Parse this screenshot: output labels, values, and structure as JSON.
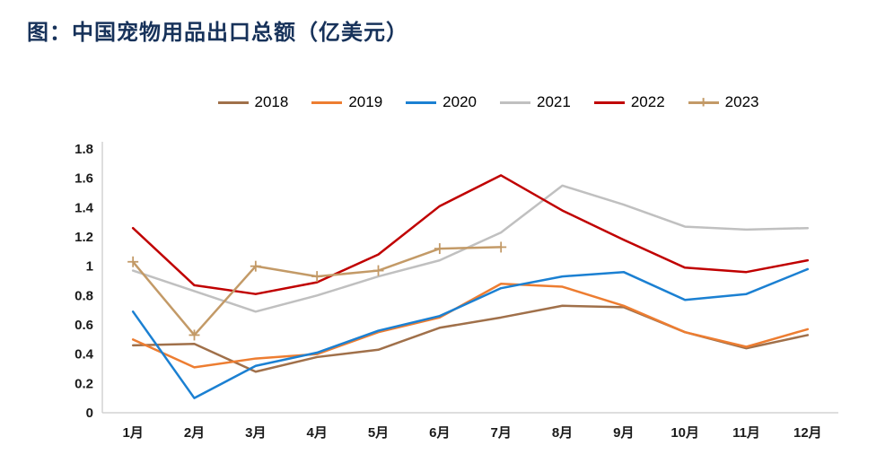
{
  "title": "图：中国宠物用品出口总额（亿美元）",
  "chart_data": {
    "type": "line",
    "title": "图：中国宠物用品出口总额（亿美元）",
    "unit": "亿美元",
    "categories": [
      "1月",
      "2月",
      "3月",
      "4月",
      "5月",
      "6月",
      "7月",
      "8月",
      "9月",
      "10月",
      "11月",
      "12月"
    ],
    "ylim": [
      0,
      1.8
    ],
    "ytick_step": 0.2,
    "ytick_labels": [
      "0",
      "0.2",
      "0.4",
      "0.6",
      "0.8",
      "1",
      "1.2",
      "1.4",
      "1.6",
      "1.8"
    ],
    "grid": false,
    "legend_position": "top",
    "series": [
      {
        "name": "2018",
        "color": "#A0704A",
        "marker": "none",
        "values": [
          0.46,
          0.47,
          0.28,
          0.38,
          0.43,
          0.58,
          0.65,
          0.73,
          0.72,
          0.55,
          0.44,
          0.53
        ]
      },
      {
        "name": "2019",
        "color": "#ED7D31",
        "marker": "none",
        "values": [
          0.5,
          0.31,
          0.37,
          0.4,
          0.55,
          0.65,
          0.88,
          0.86,
          0.73,
          0.55,
          0.45,
          0.57
        ]
      },
      {
        "name": "2020",
        "color": "#1B80D2",
        "marker": "none",
        "values": [
          0.69,
          0.1,
          0.32,
          0.41,
          0.56,
          0.66,
          0.85,
          0.93,
          0.96,
          0.77,
          0.81,
          0.98
        ]
      },
      {
        "name": "2021",
        "color": "#C0C0C0",
        "marker": "none",
        "values": [
          0.97,
          0.83,
          0.69,
          0.8,
          0.93,
          1.04,
          1.23,
          1.55,
          1.42,
          1.27,
          1.25,
          1.26
        ]
      },
      {
        "name": "2022",
        "color": "#C00000",
        "marker": "none",
        "values": [
          1.26,
          0.87,
          0.81,
          0.89,
          1.08,
          1.41,
          1.62,
          1.38,
          1.18,
          0.99,
          0.96,
          1.04
        ]
      },
      {
        "name": "2023",
        "color": "#C39A67",
        "marker": "plus",
        "values": [
          1.03,
          0.53,
          1.0,
          0.93,
          0.97,
          1.12,
          1.13,
          null,
          null,
          null,
          null,
          null
        ]
      }
    ]
  }
}
